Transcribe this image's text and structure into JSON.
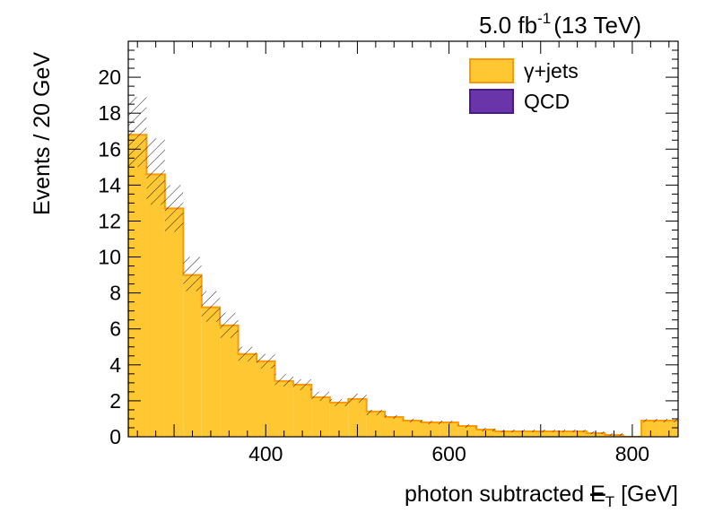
{
  "chart_data": {
    "type": "bar",
    "style": "stacked-histogram",
    "lumi_label": "5.0 fb",
    "lumi_exp": "-1",
    "energy_label": "(13 TeV)",
    "xlabel_text": "photon subtracted ",
    "xlabel_met": "E",
    "xlabel_sub": "T",
    "xlabel_unit": " [GeV]",
    "ylabel": "Events / 20 GeV",
    "xlim": [
      250,
      850
    ],
    "ylim": [
      0,
      22
    ],
    "x_ticks": [
      400,
      600,
      800
    ],
    "y_ticks": [
      0,
      2,
      4,
      6,
      8,
      10,
      12,
      14,
      16,
      18,
      20
    ],
    "bin_width": 20,
    "bin_edges_start": 250,
    "series": [
      {
        "name": "γ+jets",
        "color": "#ffc832",
        "edge_color": "#ff9900",
        "values": [
          16.8,
          14.6,
          12.7,
          9.0,
          7.2,
          6.2,
          4.6,
          4.2,
          3.1,
          2.9,
          2.2,
          1.9,
          2.1,
          1.4,
          1.1,
          0.9,
          0.8,
          0.8,
          0.6,
          0.4,
          0.3,
          0.3,
          0.3,
          0.3,
          0.3,
          0.2,
          0.1,
          0.0,
          0.9,
          0.9
        ]
      },
      {
        "name": "QCD",
        "color": "#6a35a8",
        "edge_color": "#4b1a8a",
        "values": [
          0,
          0,
          0,
          0,
          0,
          0,
          0,
          0,
          0,
          0,
          0,
          0,
          0,
          0,
          0,
          0,
          0,
          0,
          0,
          0,
          0,
          0,
          0,
          0,
          0,
          0,
          0,
          0,
          0,
          0
        ]
      }
    ],
    "uncertainty": {
      "style": "hatched",
      "up": [
        18.9,
        16.6,
        14.0,
        10.0,
        8.1,
        6.9,
        5.0,
        4.6,
        3.5,
        3.2,
        2.5,
        2.1,
        2.4,
        1.5,
        1.2,
        1.0,
        0.9,
        0.9,
        0.7,
        0.5,
        0.4,
        0.4,
        0.4,
        0.4,
        0.4,
        0.3,
        0.2,
        0.05,
        1.0,
        1.0
      ],
      "down": [
        15.0,
        12.9,
        11.4,
        8.1,
        6.4,
        5.5,
        4.2,
        3.8,
        2.8,
        2.6,
        2.0,
        1.7,
        1.9,
        1.2,
        1.0,
        0.8,
        0.7,
        0.7,
        0.5,
        0.3,
        0.25,
        0.25,
        0.25,
        0.25,
        0.25,
        0.15,
        0.05,
        0.0,
        0.8,
        0.8
      ]
    },
    "legend_position": "top-right",
    "grid": false
  }
}
